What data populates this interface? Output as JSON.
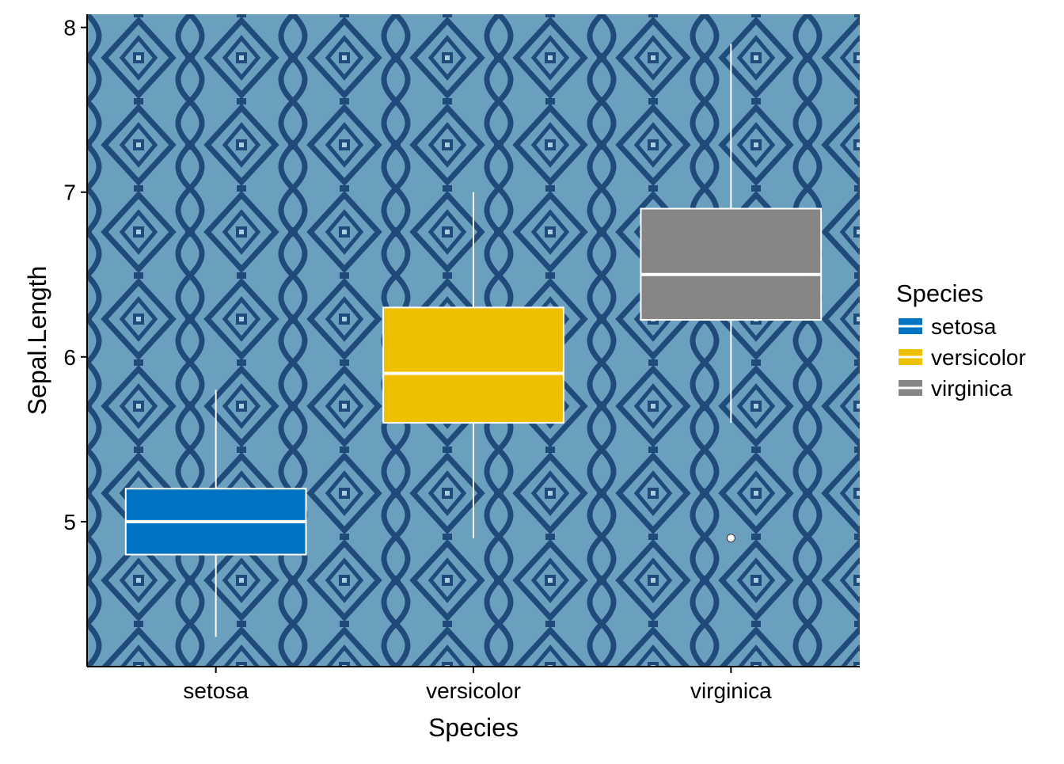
{
  "chart_data": {
    "type": "boxplot",
    "title": "",
    "xlabel": "Species",
    "ylabel": "Sepal.Length",
    "ylim": [
      4.12,
      8.08
    ],
    "yticks": [
      5,
      6,
      7,
      8
    ],
    "ytick_labels": [
      "5",
      "6",
      "7",
      "8"
    ],
    "categories": [
      "setosa",
      "versicolor",
      "virginica"
    ],
    "boxes": [
      {
        "category": "setosa",
        "whisker_low": 4.3,
        "q1": 4.8,
        "median": 5.0,
        "q3": 5.2,
        "whisker_high": 5.8,
        "outliers": []
      },
      {
        "category": "versicolor",
        "whisker_low": 4.9,
        "q1": 5.6,
        "median": 5.9,
        "q3": 6.3,
        "whisker_high": 7.0,
        "outliers": []
      },
      {
        "category": "virginica",
        "whisker_low": 5.6,
        "q1": 6.225,
        "median": 6.5,
        "q3": 6.9,
        "whisker_high": 7.9,
        "outliers": [
          4.9
        ]
      }
    ],
    "legend": {
      "title": "Species",
      "position": "right",
      "entries": [
        "setosa",
        "versicolor",
        "virginica"
      ]
    },
    "colors": {
      "setosa": "#0073C2",
      "versicolor": "#EFC000",
      "virginica": "#868686",
      "panel_background": "#6B9FBE",
      "pattern": "#1F4A7A",
      "box_line": "#FFFFFF"
    },
    "grid": false
  }
}
